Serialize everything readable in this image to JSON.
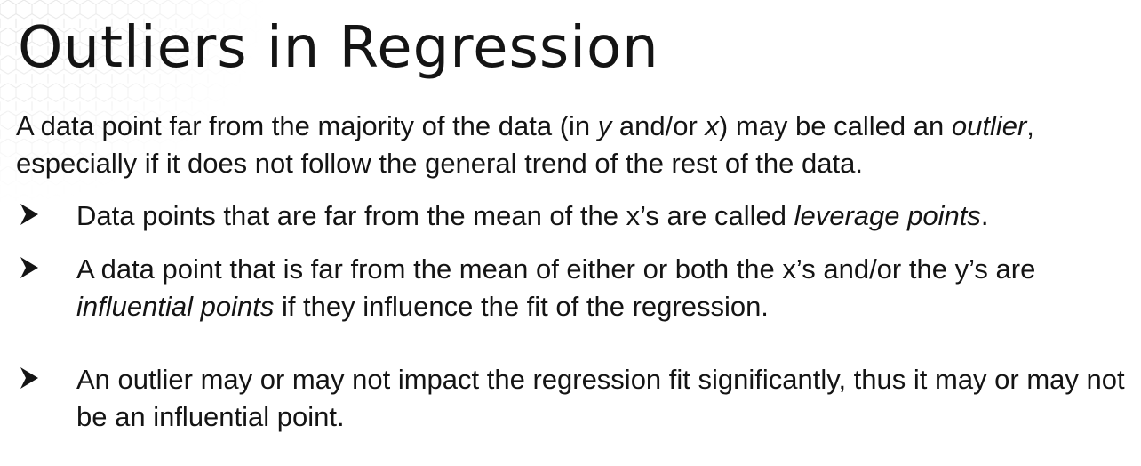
{
  "slide": {
    "title": "Outliers in Regression",
    "intro": {
      "t1": "A data point far from the majority of the data (in ",
      "t2": "y",
      "t3": " and/or ",
      "t4": "x",
      "t5": ") may be called an ",
      "t6": "outlier",
      "t7": ", especially if it does not follow the general trend of the rest of the data."
    },
    "bullets": [
      {
        "t1": "Data points that are far from the mean of the x’s are called ",
        "t2": "leverage points",
        "t3": "."
      },
      {
        "t1": "A data point that is far from the mean of either or both the x’s and/or the y’s are ",
        "t2": "influential points",
        "t3": " if they influence the fit of the regression."
      },
      {
        "t1": "An outlier may or may not impact the regression fit significantly, thus it may or may not be an influential point."
      }
    ]
  },
  "colors": {
    "text": "#141414",
    "background": "#ffffff",
    "hex_pattern": "#e3e3e3"
  },
  "icons": {
    "bullet": "arrowhead-bullet-icon",
    "background": "hexagon-pattern"
  }
}
